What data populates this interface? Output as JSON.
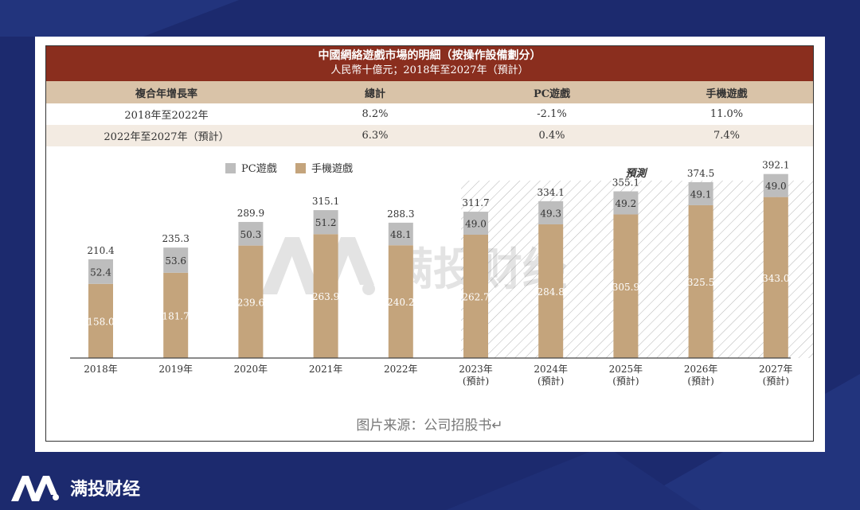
{
  "header": {
    "title": "中國網絡遊戲市場的明細（按操作設備劃分）",
    "subtitle": "人民幣十億元；2018年至2027年（預計）"
  },
  "cagr_table": {
    "headers": [
      "複合年增長率",
      "總計",
      "PC遊戲",
      "手機遊戲"
    ],
    "rows": [
      [
        "2018年至2022年",
        "8.2%",
        "-2.1%",
        "11.0%"
      ],
      [
        "2022年至2027年（預計）",
        "6.3%",
        "0.4%",
        "7.4%"
      ]
    ]
  },
  "chart_data": {
    "type": "bar",
    "stacked": true,
    "categories": [
      "2018年",
      "2019年",
      "2020年",
      "2021年",
      "2022年",
      "2023年",
      "2024年",
      "2025年",
      "2026年",
      "2027年"
    ],
    "category_sublabels": [
      "",
      "",
      "",
      "",
      "",
      "(預計)",
      "(預計)",
      "(預計)",
      "(預計)",
      "(預計)"
    ],
    "series": [
      {
        "name": "手機遊戲",
        "color": "#c4a47c",
        "values": [
          158.0,
          181.7,
          239.6,
          263.9,
          240.2,
          262.7,
          284.8,
          305.9,
          325.5,
          343.0
        ]
      },
      {
        "name": "PC遊戲",
        "color": "#bdbdbd",
        "values": [
          52.4,
          53.6,
          50.3,
          51.2,
          48.1,
          49.0,
          49.3,
          49.2,
          49.1,
          49.0
        ]
      }
    ],
    "totals": [
      210.4,
      235.3,
      289.9,
      315.1,
      288.3,
      311.7,
      334.1,
      355.1,
      374.5,
      392.1
    ],
    "legend": [
      "PC遊戲",
      "手機遊戲"
    ],
    "forecast_label": "預測",
    "forecast_start_index": 5,
    "ylim": [
      0,
      420
    ],
    "legend_position": "top-left",
    "grid": false
  },
  "source_note": "图片来源：公司招股书↵",
  "brand": {
    "watermark": "满投财经",
    "footer_name": "满投财经"
  },
  "colors": {
    "background": "#1c2a6e",
    "title_bar": "#8a2e1e",
    "table_header": "#d9c3a8",
    "mobile": "#c4a47c",
    "pc": "#bdbdbd"
  }
}
